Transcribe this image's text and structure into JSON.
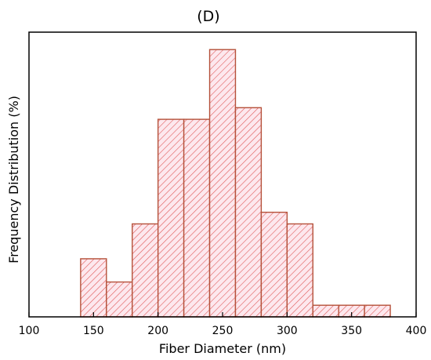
{
  "chart_data": {
    "type": "bar",
    "title": "(D)",
    "xlabel": "Fiber Diameter (nm)",
    "ylabel": "Frequency Distribution (%)",
    "xlim": [
      100,
      400
    ],
    "ylim": [
      0,
      24.5
    ],
    "xticks": [
      "100",
      "150",
      "200",
      "250",
      "300",
      "350",
      "400"
    ],
    "yticks_shown": false,
    "grid": false,
    "bin_width": 20,
    "bins": [
      {
        "start": 140,
        "end": 160,
        "value": 5
      },
      {
        "start": 160,
        "end": 180,
        "value": 3
      },
      {
        "start": 180,
        "end": 200,
        "value": 8
      },
      {
        "start": 200,
        "end": 220,
        "value": 17
      },
      {
        "start": 220,
        "end": 240,
        "value": 17
      },
      {
        "start": 240,
        "end": 260,
        "value": 23
      },
      {
        "start": 260,
        "end": 280,
        "value": 18
      },
      {
        "start": 280,
        "end": 300,
        "value": 9
      },
      {
        "start": 300,
        "end": 320,
        "value": 8
      },
      {
        "start": 320,
        "end": 340,
        "value": 1
      },
      {
        "start": 340,
        "end": 360,
        "value": 1
      },
      {
        "start": 360,
        "end": 380,
        "value": 1
      }
    ],
    "colors": {
      "bar_fill": "#fde8ee",
      "bar_edge": "#b5513a",
      "hatch": "#e05a5a",
      "axis": "#000000"
    },
    "hatch_pattern": "diagonal"
  }
}
